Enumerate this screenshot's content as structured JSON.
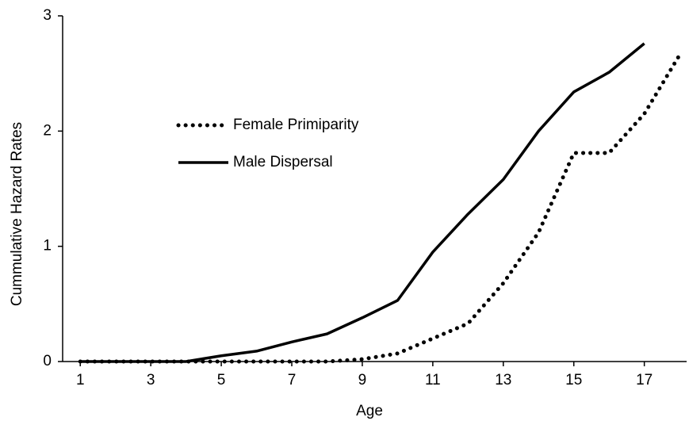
{
  "chart_data": {
    "type": "line",
    "x_label": "Age",
    "y_label": "Cummulative Hazard  Rates",
    "x": [
      1,
      2,
      3,
      4,
      5,
      6,
      7,
      8,
      9,
      10,
      11,
      12,
      13,
      14,
      15,
      16,
      17,
      18
    ],
    "series": [
      {
        "name": "Female Primiparity",
        "color": "#000000",
        "dash": "dotted",
        "values": [
          0,
          0,
          0,
          0,
          0,
          0,
          0,
          0,
          0.02,
          0.07,
          0.2,
          0.33,
          0.68,
          1.12,
          1.81,
          1.81,
          2.15,
          2.66
        ]
      },
      {
        "name": "Male Dispersal",
        "color": "#000000",
        "dash": "solid",
        "values": [
          0,
          0,
          0,
          0,
          0.05,
          0.09,
          0.17,
          0.24,
          0.38,
          0.53,
          0.95,
          1.28,
          1.58,
          2.0,
          2.34,
          2.51,
          2.76,
          null
        ]
      }
    ],
    "xlim": [
      0.5,
      18.2
    ],
    "xticks": [
      1,
      3,
      5,
      7,
      9,
      11,
      13,
      15,
      17
    ],
    "ylim": [
      0,
      3
    ],
    "yticks": [
      0,
      1,
      2,
      3
    ]
  }
}
